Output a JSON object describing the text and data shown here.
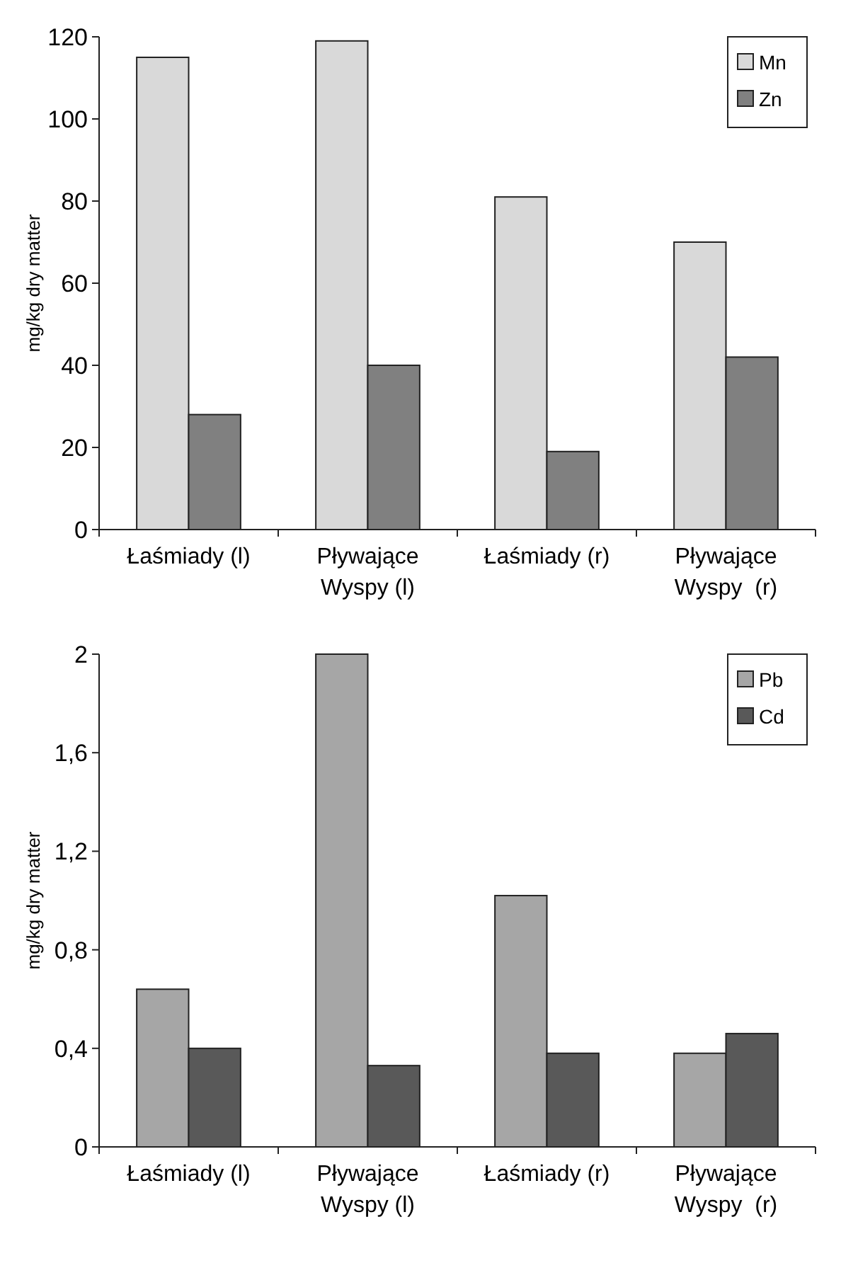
{
  "chart_data": [
    {
      "type": "bar",
      "ylabel": "mg/kg dry matter",
      "categories": [
        "Łaśmiady (l)",
        "Pływające\nWyspy (l)",
        "Łaśmiady (r)",
        "Pływające\nWyspy  (r)"
      ],
      "ylim": [
        0,
        120
      ],
      "yticks": [
        0,
        20,
        40,
        60,
        80,
        100,
        120
      ],
      "legend": "top right",
      "grid": false,
      "series": [
        {
          "name": "Mn",
          "color": "#d9d9d9",
          "values": [
            115,
            119,
            81,
            70
          ]
        },
        {
          "name": "Zn",
          "color": "#808080",
          "values": [
            28,
            40,
            19,
            42
          ]
        }
      ]
    },
    {
      "type": "bar",
      "ylabel": "mg/kg dry matter",
      "categories": [
        "Łaśmiady (l)",
        "Pływające\nWyspy (l)",
        "Łaśmiady (r)",
        "Pływające\nWyspy  (r)"
      ],
      "ylim": [
        0,
        2
      ],
      "yticks": [
        0,
        {
          "value": 0.4,
          "label": "0,4"
        },
        {
          "value": 0.8,
          "label": "0,8"
        },
        {
          "value": 1.2,
          "label": "1,2"
        },
        {
          "value": 1.6,
          "label": "1,6"
        },
        2
      ],
      "legend": "top right",
      "grid": false,
      "series": [
        {
          "name": "Pb",
          "color": "#a6a6a6",
          "values": [
            0.64,
            2,
            1.02,
            0.38
          ]
        },
        {
          "name": "Cd",
          "color": "#595959",
          "values": [
            0.4,
            0.33,
            0.38,
            0.46
          ]
        }
      ]
    }
  ]
}
